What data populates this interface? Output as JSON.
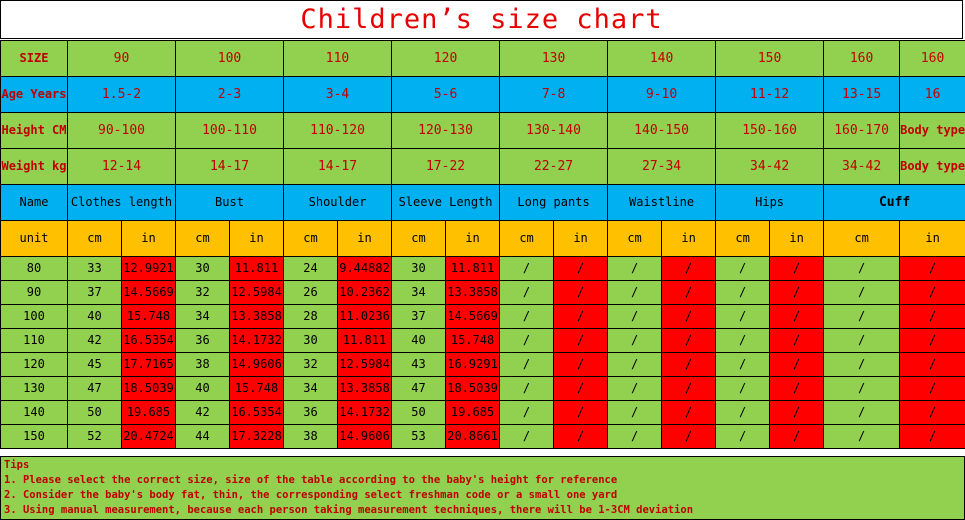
{
  "title": "Children’s size chart",
  "size_row": {
    "label": "SIZE",
    "values": [
      "90",
      "100",
      "110",
      "120",
      "130",
      "140",
      "150",
      "160",
      "160"
    ]
  },
  "age_row": {
    "label": "Age Years",
    "values": [
      "1.5-2",
      "2-3",
      "3-4",
      "5-6",
      "7-8",
      "9-10",
      "11-12",
      "13-15",
      "16"
    ]
  },
  "height_row": {
    "label": "Height CM",
    "values": [
      "90-100",
      "100-110",
      "110-120",
      "120-130",
      "130-140",
      "140-150",
      "150-160",
      "160-170",
      "Body type"
    ]
  },
  "weight_row": {
    "label": "Weight kg",
    "values": [
      "12-14",
      "14-17",
      "14-17",
      "17-22",
      "22-27",
      "27-34",
      "34-42",
      "34-42",
      "Body type"
    ]
  },
  "name_row": {
    "label": "Name",
    "values": [
      "Clothes length",
      "Bust",
      "Shoulder",
      "Sleeve Length",
      "Long pants",
      "Waistline",
      "Hips",
      "Cuff"
    ]
  },
  "unit_row": {
    "label": "unit",
    "values": [
      "cm",
      "in",
      "cm",
      "in",
      "cm",
      "in",
      "cm",
      "in",
      "cm",
      "in",
      "cm",
      "in",
      "cm",
      "in",
      "cm",
      "in"
    ]
  },
  "rows": [
    [
      "80",
      "33",
      "12.9921",
      "30",
      "11.811",
      "24",
      "9.44882",
      "30",
      "11.811",
      "/",
      "/",
      "/",
      "/",
      "/",
      "/",
      "/",
      "/"
    ],
    [
      "90",
      "37",
      "14.5669",
      "32",
      "12.5984",
      "26",
      "10.2362",
      "34",
      "13.3858",
      "/",
      "/",
      "/",
      "/",
      "/",
      "/",
      "/",
      "/"
    ],
    [
      "100",
      "40",
      "15.748",
      "34",
      "13.3858",
      "28",
      "11.0236",
      "37",
      "14.5669",
      "/",
      "/",
      "/",
      "/",
      "/",
      "/",
      "/",
      "/"
    ],
    [
      "110",
      "42",
      "16.5354",
      "36",
      "14.1732",
      "30",
      "11.811",
      "40",
      "15.748",
      "/",
      "/",
      "/",
      "/",
      "/",
      "/",
      "/",
      "/"
    ],
    [
      "120",
      "45",
      "17.7165",
      "38",
      "14.9606",
      "32",
      "12.5984",
      "43",
      "16.9291",
      "/",
      "/",
      "/",
      "/",
      "/",
      "/",
      "/",
      "/"
    ],
    [
      "130",
      "47",
      "18.5039",
      "40",
      "15.748",
      "34",
      "13.3858",
      "47",
      "18.5039",
      "/",
      "/",
      "/",
      "/",
      "/",
      "/",
      "/",
      "/"
    ],
    [
      "140",
      "50",
      "19.685",
      "42",
      "16.5354",
      "36",
      "14.1732",
      "50",
      "19.685",
      "/",
      "/",
      "/",
      "/",
      "/",
      "/",
      "/",
      "/"
    ],
    [
      "150",
      "52",
      "20.4724",
      "44",
      "17.3228",
      "38",
      "14.9606",
      "53",
      "20.8661",
      "/",
      "/",
      "/",
      "/",
      "/",
      "/",
      "/",
      "/"
    ]
  ],
  "tips": {
    "heading": "Tips",
    "lines": [
      "1. Please select the correct size, size of the table according to the baby's height for reference",
      "2. Consider the baby's body fat, thin, the corresponding select freshman code or a small one yard",
      "3. Using manual measurement, because each person taking measurement techniques, there will be 1-3CM deviation"
    ]
  },
  "colors": {
    "green": "#92d050",
    "blue": "#00b0f0",
    "orange": "#ffc000",
    "red_cell": "#ff0000",
    "red_text": "#c00000",
    "title_red": "#e60000"
  }
}
